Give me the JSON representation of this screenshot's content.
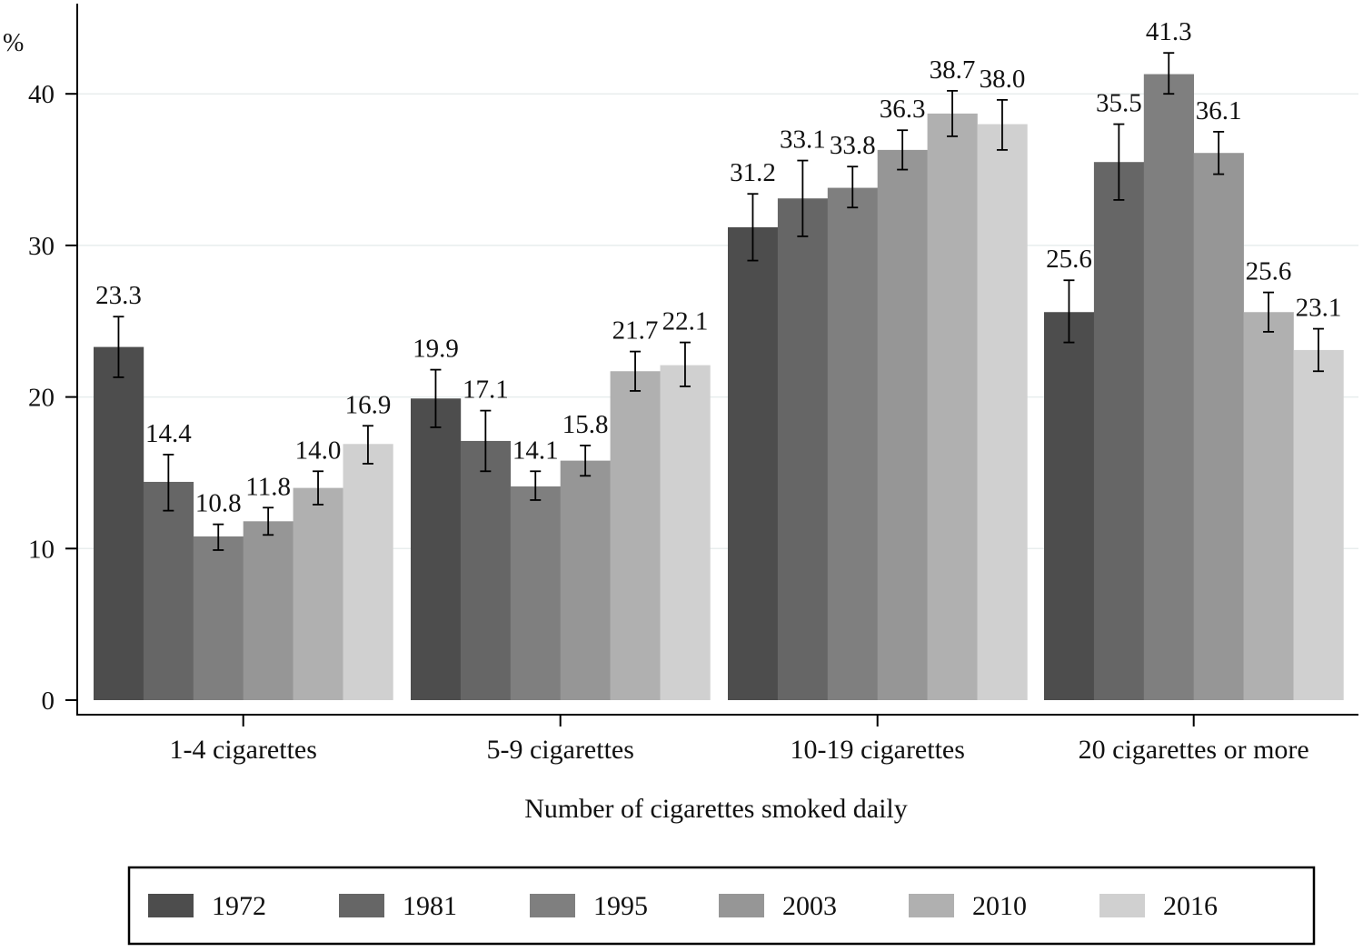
{
  "chart_data": {
    "type": "bar",
    "ylabel": "%",
    "xlabel": "Number of cigarettes smoked daily",
    "categories": [
      "1-4 cigarettes",
      "5-9 cigarettes",
      "10-19 cigarettes",
      "20 cigarettes or more"
    ],
    "yticks": [
      0,
      10,
      20,
      30,
      40
    ],
    "ylim": [
      0,
      46
    ],
    "grid": true,
    "error_bars": true,
    "legend_position": "bottom",
    "series": [
      {
        "name": "1972",
        "color": "#4d4d4d",
        "values": [
          23.3,
          19.9,
          31.2,
          25.6
        ],
        "ci_low": [
          21.3,
          18.0,
          29.0,
          23.6
        ],
        "ci_high": [
          25.3,
          21.8,
          33.4,
          27.7
        ]
      },
      {
        "name": "1981",
        "color": "#666666",
        "values": [
          14.4,
          17.1,
          33.1,
          35.5
        ],
        "ci_low": [
          12.5,
          15.1,
          30.6,
          33.0
        ],
        "ci_high": [
          16.2,
          19.1,
          35.6,
          38.0
        ]
      },
      {
        "name": "1995",
        "color": "#7f7f7f",
        "values": [
          10.8,
          14.1,
          33.8,
          41.3
        ],
        "ci_low": [
          9.9,
          13.2,
          32.5,
          40.0
        ],
        "ci_high": [
          11.6,
          15.1,
          35.2,
          42.7
        ]
      },
      {
        "name": "2003",
        "color": "#969696",
        "values": [
          11.8,
          15.8,
          36.3,
          36.1
        ],
        "ci_low": [
          10.9,
          14.8,
          35.0,
          34.7
        ],
        "ci_high": [
          12.7,
          16.8,
          37.6,
          37.5
        ]
      },
      {
        "name": "2010",
        "color": "#b0b0b0",
        "values": [
          14.0,
          21.7,
          38.7,
          25.6
        ],
        "ci_low": [
          12.9,
          20.4,
          37.2,
          24.3
        ],
        "ci_high": [
          15.1,
          23.0,
          40.2,
          26.9
        ]
      },
      {
        "name": "2016",
        "color": "#d0d0d0",
        "values": [
          16.9,
          22.1,
          38.0,
          23.1
        ],
        "ci_low": [
          15.6,
          20.7,
          36.3,
          21.7
        ],
        "ci_high": [
          18.1,
          23.6,
          39.6,
          24.5
        ]
      }
    ]
  }
}
